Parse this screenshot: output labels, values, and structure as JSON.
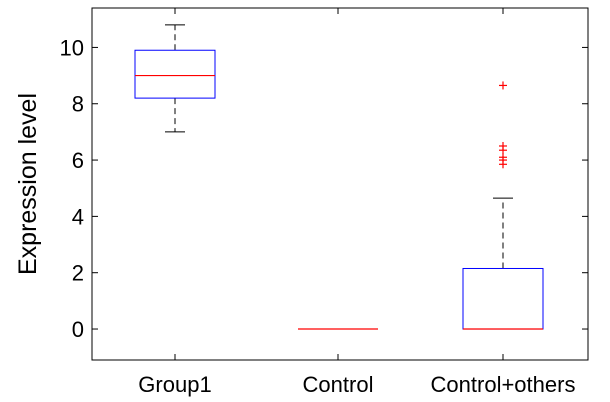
{
  "chart_data": {
    "type": "box",
    "ylabel": "Expression level",
    "xlabel": "",
    "ylim": [
      -1.1,
      11.4
    ],
    "yticks": [
      0,
      2,
      4,
      6,
      8,
      10
    ],
    "categories": [
      "Group1",
      "Control",
      "Control+others"
    ],
    "boxes": [
      {
        "category": "Group1",
        "whisker_low": 7.0,
        "q1": 8.2,
        "median": 9.0,
        "q3": 9.9,
        "whisker_high": 10.8,
        "outliers": []
      },
      {
        "category": "Control",
        "whisker_low": 0.0,
        "q1": 0.0,
        "median": 0.0,
        "q3": 0.0,
        "whisker_high": 0.0,
        "outliers": []
      },
      {
        "category": "Control+others",
        "whisker_low": 0.0,
        "q1": 0.0,
        "median": 0.0,
        "q3": 2.15,
        "whisker_high": 4.65,
        "outliers": [
          5.85,
          6.0,
          6.1,
          6.35,
          6.5,
          8.65
        ]
      }
    ],
    "colors": {
      "box": "#0000ff",
      "median": "#ff0000",
      "whisker": "#000000",
      "outlier": "#ff0000"
    },
    "grid": false,
    "legend": "none"
  }
}
